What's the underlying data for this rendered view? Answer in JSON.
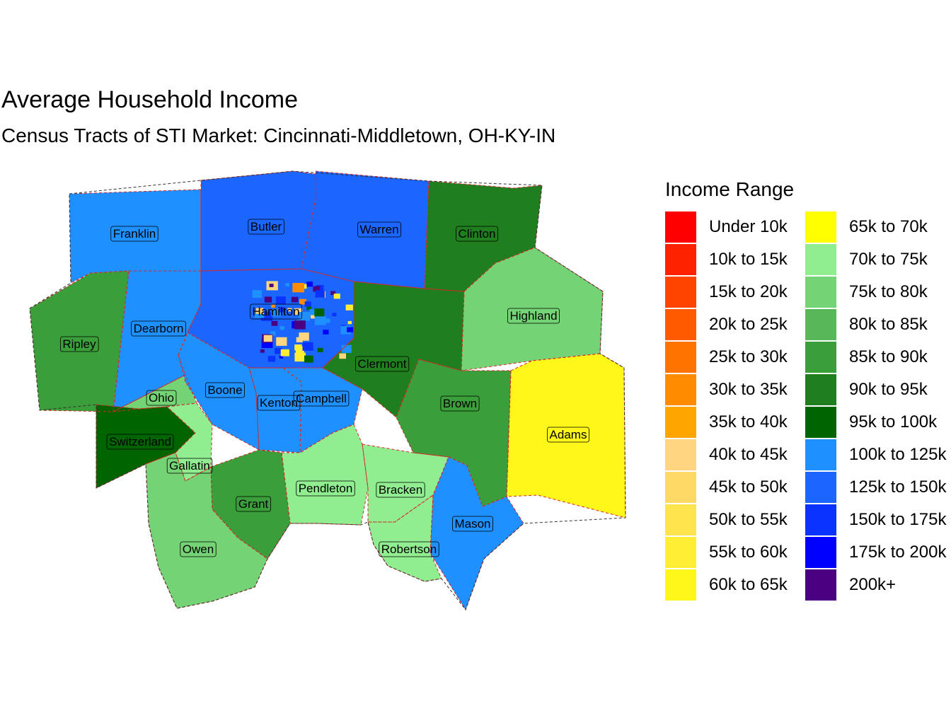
{
  "title": "Average Household Income",
  "subtitle": "Census Tracts of STI Market: Cincinnati-Middletown, OH-KY-IN",
  "legend": {
    "title": "Income Range",
    "items": [
      {
        "label": "Under 10k",
        "color": "#FF0000"
      },
      {
        "label": "10k to 15k",
        "color": "#FF2200"
      },
      {
        "label": "15k to 20k",
        "color": "#FF4400"
      },
      {
        "label": "20k to 25k",
        "color": "#FF5A00"
      },
      {
        "label": "25k to 30k",
        "color": "#FF7300"
      },
      {
        "label": "30k to 35k",
        "color": "#FF8C00"
      },
      {
        "label": "35k to 40k",
        "color": "#FFA500"
      },
      {
        "label": "40k to 45k",
        "color": "#FFD580"
      },
      {
        "label": "45k to 50k",
        "color": "#FFD966"
      },
      {
        "label": "50k to 55k",
        "color": "#FFE44D"
      },
      {
        "label": "55k to 60k",
        "color": "#FFEE33"
      },
      {
        "label": "60k to 65k",
        "color": "#FFF71A"
      },
      {
        "label": "65k to 70k",
        "color": "#FFFF00"
      },
      {
        "label": "70k to 75k",
        "color": "#90EE90"
      },
      {
        "label": "75k to 80k",
        "color": "#74D374"
      },
      {
        "label": "80k to 85k",
        "color": "#56B856"
      },
      {
        "label": "85k to 90k",
        "color": "#3A9E3A"
      },
      {
        "label": "90k to 95k",
        "color": "#1F7F1F"
      },
      {
        "label": "95k to 100k",
        "color": "#006400"
      },
      {
        "label": "100k to 125k",
        "color": "#1E90FF"
      },
      {
        "label": "125k to 150k",
        "color": "#1A66FF"
      },
      {
        "label": "150k to 175k",
        "color": "#0A33FF"
      },
      {
        "label": "175k to 200k",
        "color": "#0000FF"
      },
      {
        "label": "200k+",
        "color": "#4B0082"
      }
    ]
  },
  "counties": [
    {
      "name": "Franklin",
      "fill": "#1E90FF"
    },
    {
      "name": "Butler",
      "fill": "#1A66FF"
    },
    {
      "name": "Warren",
      "fill": "#1A66FF"
    },
    {
      "name": "Clinton",
      "fill": "#1F7F1F"
    },
    {
      "name": "Ripley",
      "fill": "#3A9E3A"
    },
    {
      "name": "Dearborn",
      "fill": "#1E90FF"
    },
    {
      "name": "Hamilton",
      "fill": "#1A66FF"
    },
    {
      "name": "Highland",
      "fill": "#74D374"
    },
    {
      "name": "Clermont",
      "fill": "#1F7F1F"
    },
    {
      "name": "Ohio",
      "fill": "#74D374"
    },
    {
      "name": "Boone",
      "fill": "#1E90FF"
    },
    {
      "name": "Kenton",
      "fill": "#1E90FF"
    },
    {
      "name": "Campbell",
      "fill": "#1E90FF"
    },
    {
      "name": "Brown",
      "fill": "#3A9E3A"
    },
    {
      "name": "Adams",
      "fill": "#FFF71A"
    },
    {
      "name": "Switzerland",
      "fill": "#006400"
    },
    {
      "name": "Gallatin",
      "fill": "#90EE90"
    },
    {
      "name": "Grant",
      "fill": "#3A9E3A"
    },
    {
      "name": "Pendleton",
      "fill": "#90EE90"
    },
    {
      "name": "Bracken",
      "fill": "#90EE90"
    },
    {
      "name": "Mason",
      "fill": "#1E90FF"
    },
    {
      "name": "Owen",
      "fill": "#74D374"
    },
    {
      "name": "Robertson",
      "fill": "#90EE90"
    }
  ]
}
